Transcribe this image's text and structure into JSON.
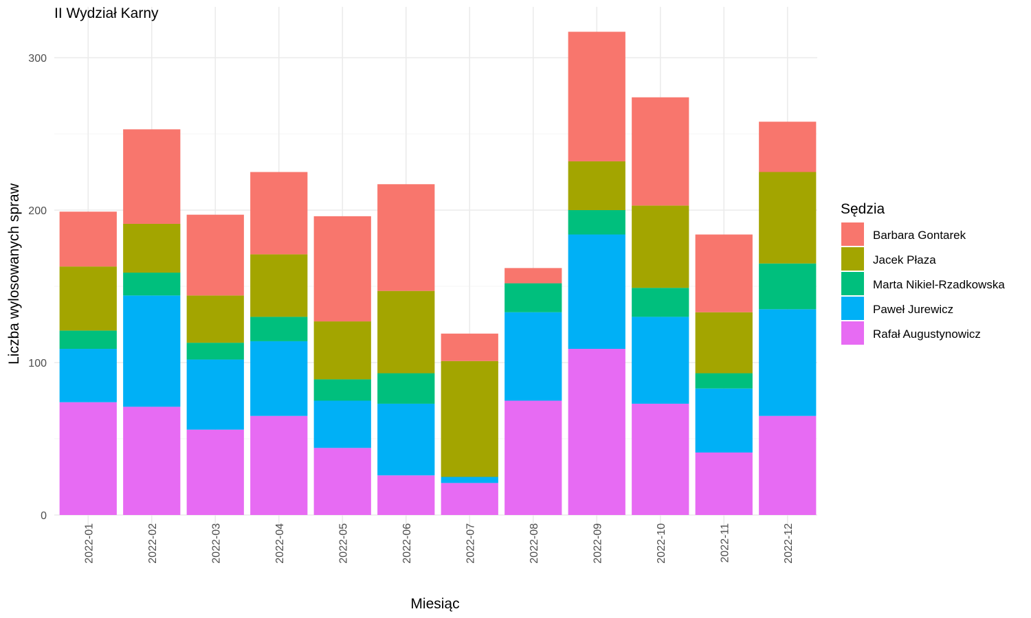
{
  "chart_data": {
    "type": "bar",
    "stacked": true,
    "title": "II Wydział Karny",
    "xlabel": "Miesiąc",
    "ylabel": "Liczba wylosowanych spraw",
    "ylim": [
      -33,
      330
    ],
    "yticks": [
      0,
      100,
      200,
      300
    ],
    "grid": true,
    "legend": {
      "title": "Sędzia",
      "position": "right"
    },
    "categories": [
      "2022-01",
      "2022-02",
      "2022-03",
      "2022-04",
      "2022-05",
      "2022-06",
      "2022-07",
      "2022-08",
      "2022-09",
      "2022-10",
      "2022-11",
      "2022-12"
    ],
    "series": [
      {
        "name": "Rafał Augustynowicz",
        "color": "#E76BF3",
        "values": [
          74,
          71,
          56,
          65,
          44,
          26,
          21,
          75,
          109,
          73,
          41,
          65
        ]
      },
      {
        "name": "Paweł Jurewicz",
        "color": "#00B0F6",
        "values": [
          35,
          73,
          46,
          49,
          31,
          47,
          4,
          58,
          75,
          57,
          42,
          70
        ]
      },
      {
        "name": "Marta Nikiel-Rzadkowska",
        "color": "#00BF7D",
        "values": [
          12,
          15,
          11,
          16,
          14,
          20,
          0,
          19,
          16,
          19,
          10,
          30
        ]
      },
      {
        "name": "Jacek Płaza",
        "color": "#A3A500",
        "values": [
          42,
          32,
          31,
          41,
          38,
          54,
          76,
          0,
          32,
          54,
          40,
          60
        ]
      },
      {
        "name": "Barbara Gontarek",
        "color": "#F8766D",
        "values": [
          36,
          62,
          53,
          54,
          69,
          70,
          18,
          10,
          85,
          71,
          51,
          33
        ]
      }
    ],
    "legend_order": [
      "Barbara Gontarek",
      "Jacek Płaza",
      "Marta Nikiel-Rzadkowska",
      "Paweł Jurewicz",
      "Rafał Augustynowicz"
    ]
  }
}
